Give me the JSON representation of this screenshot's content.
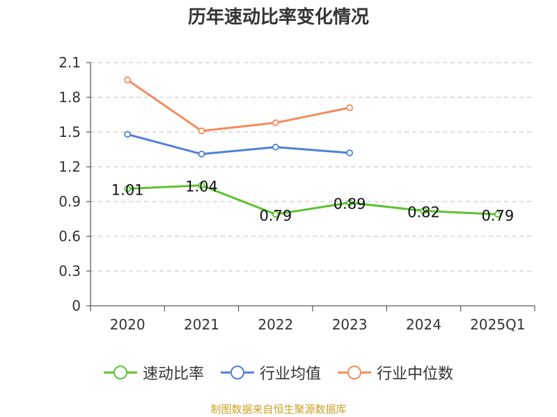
{
  "chart_data": {
    "type": "line",
    "title": "历年速动比率变化情况",
    "categories": [
      "2020",
      "2021",
      "2022",
      "2023",
      "2024",
      "2025Q1"
    ],
    "ylim": [
      0,
      2.1
    ],
    "yticks": [
      "0",
      "0.3",
      "0.6",
      "0.9",
      "1.2",
      "1.5",
      "1.8",
      "2.1"
    ],
    "grid": true,
    "legend_position": "bottom",
    "series": [
      {
        "name": "速动比率",
        "color": "#5cc22e",
        "values": [
          1.01,
          1.04,
          0.79,
          0.89,
          0.82,
          0.79
        ],
        "labels": [
          "1.01",
          "1.04",
          "0.79",
          "0.89",
          "0.82",
          "0.79"
        ]
      },
      {
        "name": "行业均值",
        "color": "#4f7fd9",
        "values": [
          1.48,
          1.31,
          1.37,
          1.32,
          null,
          null
        ]
      },
      {
        "name": "行业中位数",
        "color": "#f58a5a",
        "values": [
          1.95,
          1.51,
          1.58,
          1.71,
          null,
          null
        ]
      }
    ]
  },
  "source": "制图数据来自恒生聚源数据库"
}
